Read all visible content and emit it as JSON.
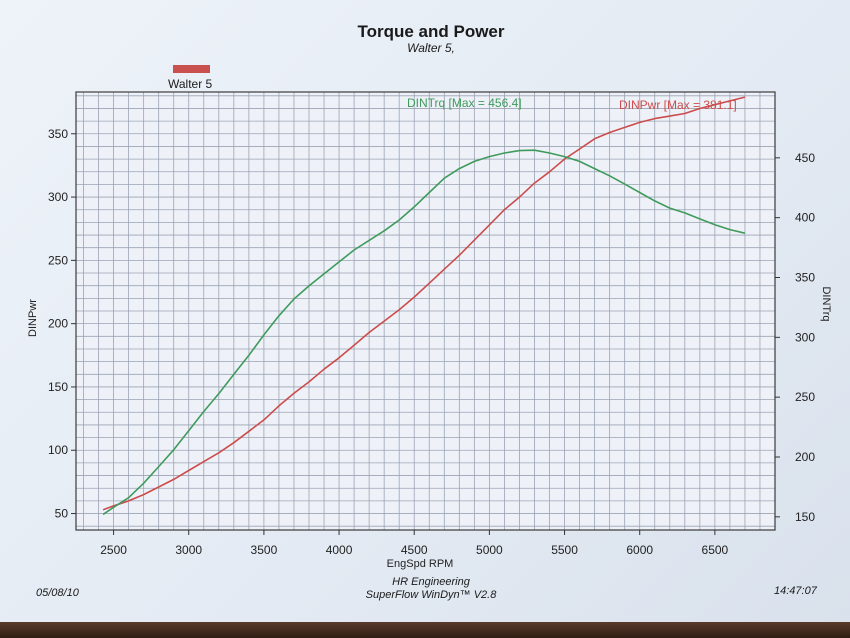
{
  "chart_data": {
    "type": "line",
    "title": "Torque and Power",
    "subtitle": "Walter 5,",
    "legend": "Walter 5",
    "xlabel": "EngSpd  RPM",
    "xlim": [
      2250,
      6900
    ],
    "xticks": [
      2500,
      3000,
      3500,
      4000,
      4500,
      5000,
      5500,
      6000,
      6500
    ],
    "left_axis": {
      "label": "DINPwr",
      "ylim": [
        37,
        383
      ],
      "ticks": [
        50,
        100,
        150,
        200,
        250,
        300,
        350
      ]
    },
    "right_axis": {
      "label": "DINTrq",
      "ylim": [
        139,
        505
      ],
      "ticks": [
        150,
        200,
        250,
        300,
        350,
        400,
        450
      ]
    },
    "series": [
      {
        "name": "DINPwr",
        "label": "DINPwr [Max = 381.1]",
        "axis": "left",
        "color": "#cc4c4c",
        "x": [
          2430,
          2500,
          2600,
          2700,
          2800,
          2900,
          3000,
          3100,
          3200,
          3300,
          3400,
          3500,
          3600,
          3700,
          3800,
          3900,
          4000,
          4100,
          4200,
          4300,
          4400,
          4500,
          4600,
          4700,
          4800,
          4900,
          5000,
          5100,
          5200,
          5300,
          5400,
          5500,
          5600,
          5700,
          5800,
          5900,
          6000,
          6100,
          6200,
          6300,
          6400,
          6500,
          6600,
          6700
        ],
        "y": [
          53,
          56,
          60,
          65,
          71,
          77,
          84,
          91,
          98,
          106,
          115,
          124,
          135,
          145,
          154,
          164,
          173,
          183,
          193,
          202,
          211,
          221,
          232,
          243,
          254,
          266,
          278,
          290,
          300,
          311,
          320,
          330,
          338,
          346,
          351,
          355,
          359,
          362,
          364,
          366,
          370,
          373,
          376,
          379
        ]
      },
      {
        "name": "DINTrq",
        "label": "DINTrq [Max = 456.4]",
        "axis": "right",
        "color": "#3f9a5c",
        "x": [
          2430,
          2500,
          2600,
          2700,
          2800,
          2900,
          3000,
          3100,
          3200,
          3300,
          3400,
          3500,
          3600,
          3700,
          3800,
          3900,
          4000,
          4100,
          4200,
          4300,
          4400,
          4500,
          4600,
          4700,
          4800,
          4900,
          5000,
          5100,
          5200,
          5300,
          5400,
          5500,
          5600,
          5700,
          5800,
          5900,
          6000,
          6100,
          6200,
          6300,
          6400,
          6500,
          6600,
          6700
        ],
        "y": [
          152,
          158,
          166,
          178,
          192,
          206,
          222,
          238,
          253,
          269,
          285,
          302,
          318,
          332,
          343,
          353,
          363,
          373,
          381,
          389,
          398,
          409,
          421,
          433,
          441,
          447,
          451,
          454,
          456,
          456.4,
          454,
          451,
          447,
          441,
          435,
          428,
          421,
          414,
          408,
          404,
          399,
          394,
          390,
          387
        ]
      }
    ]
  },
  "footer": {
    "date": "05/08/10",
    "company": "HR Engineering",
    "software": "SuperFlow WinDyn™ V2.8",
    "time": "14:47:07"
  }
}
